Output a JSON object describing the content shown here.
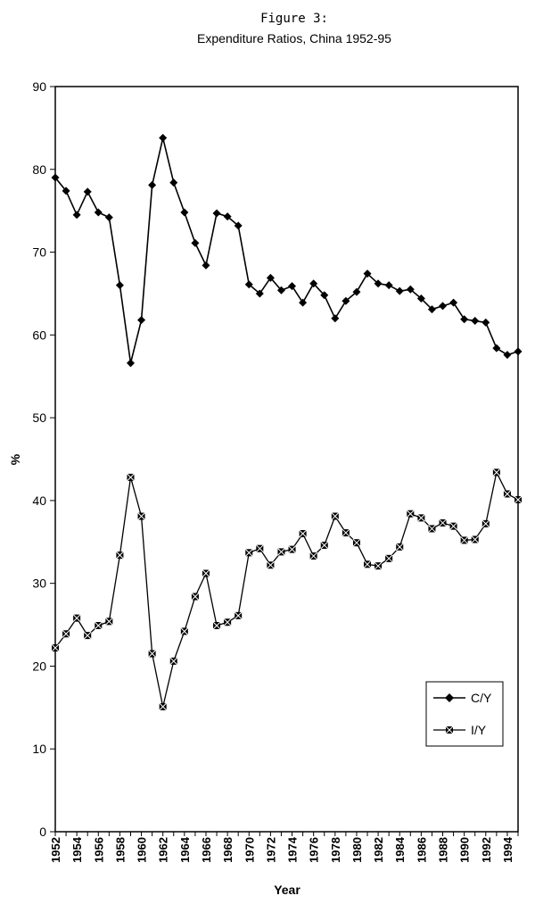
{
  "chart_data": {
    "type": "line",
    "title": "Figure 3:",
    "subtitle": "Expenditure Ratios, China 1952-95",
    "xlabel": "Year",
    "ylabel": "%",
    "x": [
      1952,
      1953,
      1954,
      1955,
      1956,
      1957,
      1958,
      1959,
      1960,
      1961,
      1962,
      1963,
      1964,
      1965,
      1966,
      1967,
      1968,
      1969,
      1970,
      1971,
      1972,
      1973,
      1974,
      1975,
      1976,
      1977,
      1978,
      1979,
      1980,
      1981,
      1982,
      1983,
      1984,
      1985,
      1986,
      1987,
      1988,
      1989,
      1990,
      1991,
      1992,
      1993,
      1994,
      1995
    ],
    "xticks": [
      1952,
      1954,
      1956,
      1958,
      1960,
      1962,
      1964,
      1966,
      1968,
      1970,
      1972,
      1974,
      1976,
      1978,
      1980,
      1982,
      1984,
      1986,
      1988,
      1990,
      1992,
      1994
    ],
    "ylim": [
      0,
      90
    ],
    "yticks": [
      0,
      10,
      20,
      30,
      40,
      50,
      60,
      70,
      80,
      90
    ],
    "grid": false,
    "legend_position": "lower-right",
    "series": [
      {
        "name": "C/Y",
        "marker": "diamond",
        "values": [
          79.0,
          77.4,
          74.5,
          77.3,
          74.8,
          74.2,
          66.0,
          56.6,
          61.8,
          78.1,
          83.8,
          78.4,
          74.8,
          71.1,
          68.4,
          74.7,
          74.3,
          73.2,
          66.1,
          65.0,
          66.9,
          65.4,
          65.9,
          63.9,
          66.2,
          64.8,
          62.0,
          64.1,
          65.2,
          67.4,
          66.2,
          66.0,
          65.3,
          65.5,
          64.4,
          63.1,
          63.5,
          63.9,
          61.9,
          61.7,
          61.5,
          58.4,
          57.6,
          58.0
        ]
      },
      {
        "name": "I/Y",
        "marker": "asterisk-square",
        "values": [
          22.2,
          23.9,
          25.8,
          23.7,
          24.9,
          25.4,
          33.4,
          42.8,
          38.1,
          21.5,
          15.1,
          20.6,
          24.2,
          28.4,
          31.2,
          24.9,
          25.3,
          26.1,
          33.7,
          34.2,
          32.2,
          33.8,
          34.1,
          36.0,
          33.3,
          34.6,
          38.1,
          36.1,
          34.9,
          32.3,
          32.1,
          33.0,
          34.4,
          38.4,
          37.9,
          36.6,
          37.3,
          36.9,
          35.2,
          35.3,
          37.2,
          43.4,
          40.8,
          40.1
        ]
      }
    ]
  }
}
